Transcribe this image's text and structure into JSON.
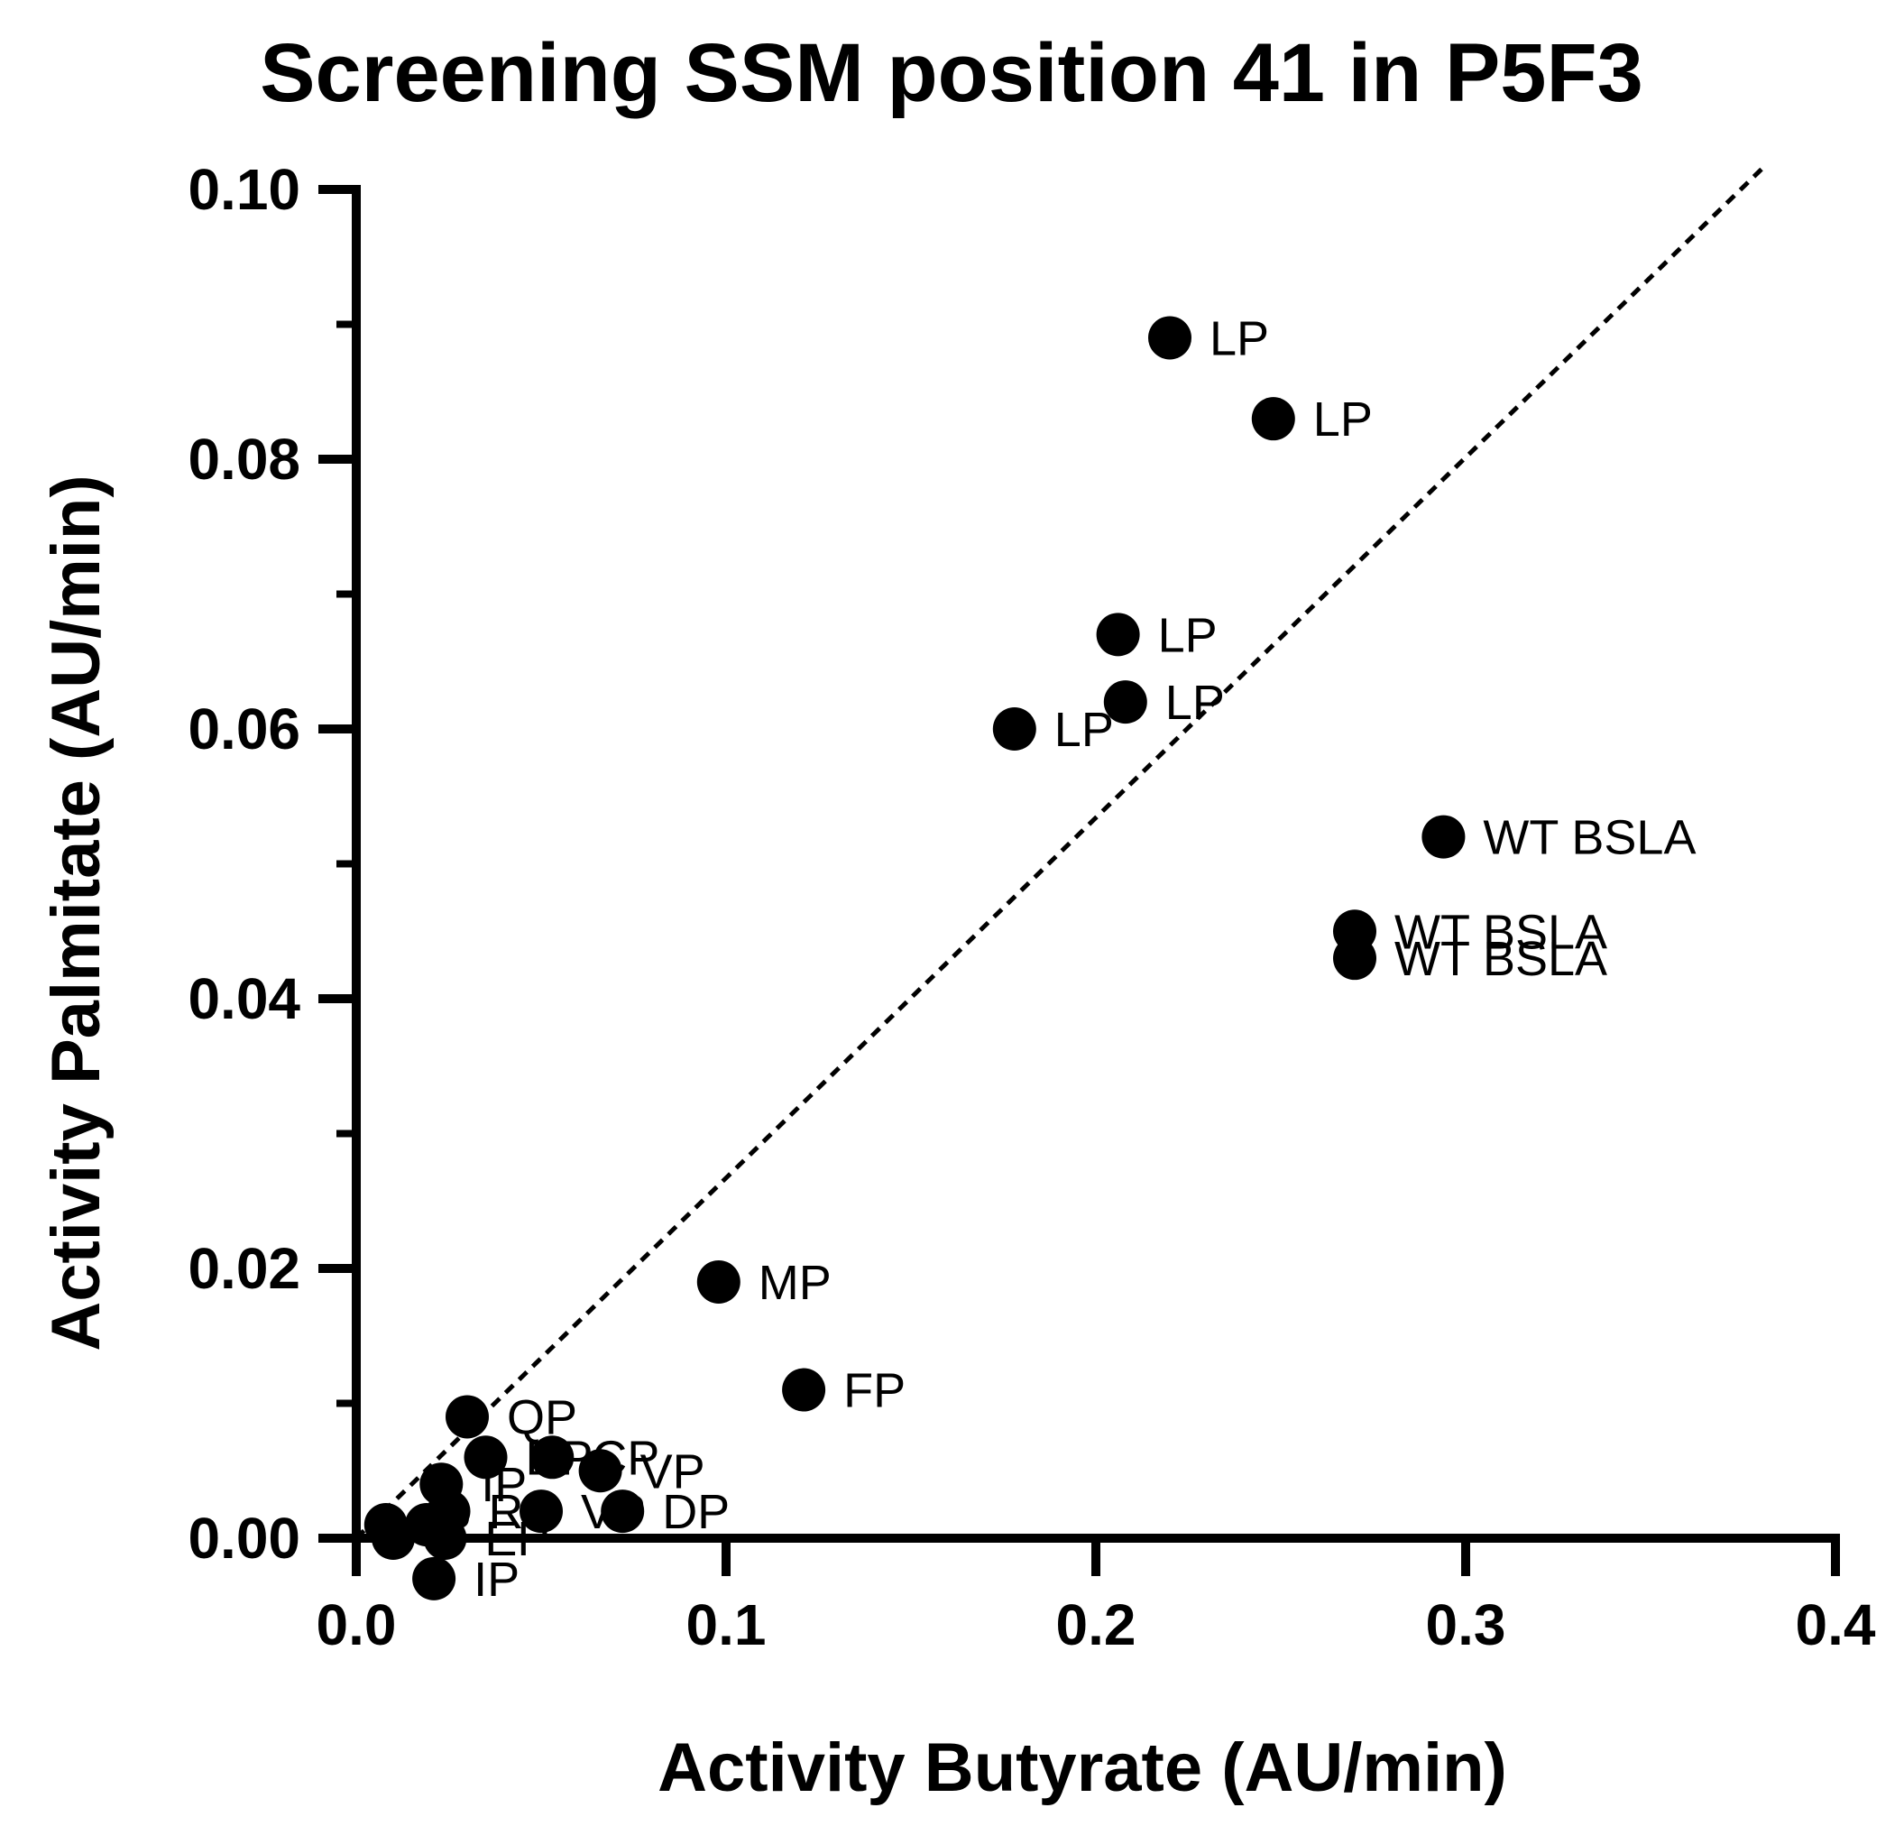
{
  "chart_data": {
    "type": "scatter",
    "title": "Screening SSM position 41 in P5F3",
    "xlabel": "Activity Butyrate (AU/min)",
    "ylabel": "Activity Palmitate (AU/min)",
    "xlim": [
      0.0,
      0.4
    ],
    "ylim": [
      0.0,
      0.1
    ],
    "x_ticks": [
      0.0,
      0.1,
      0.2,
      0.3,
      0.4
    ],
    "x_tick_labels": [
      "0.0",
      "0.1",
      "0.2",
      "0.3",
      "0.4"
    ],
    "y_ticks": [
      0.0,
      0.02,
      0.04,
      0.06,
      0.08,
      0.1
    ],
    "y_tick_labels": [
      "0.00",
      "0.02",
      "0.04",
      "0.06",
      "0.08",
      "0.10"
    ],
    "y_minor_ticks": [
      0.01,
      0.03,
      0.05,
      0.07,
      0.09
    ],
    "reference_line": {
      "style": "dashed",
      "from": [
        0.0,
        0.0
      ],
      "to": [
        0.38,
        0.1015
      ]
    },
    "points": [
      {
        "x": 0.22,
        "y": 0.089,
        "label": "LP"
      },
      {
        "x": 0.248,
        "y": 0.083,
        "label": "LP"
      },
      {
        "x": 0.206,
        "y": 0.067,
        "label": "LP"
      },
      {
        "x": 0.208,
        "y": 0.062,
        "label": "LP"
      },
      {
        "x": 0.178,
        "y": 0.06,
        "label": "LP"
      },
      {
        "x": 0.294,
        "y": 0.052,
        "label": "WT BSLA"
      },
      {
        "x": 0.27,
        "y": 0.045,
        "label": "WT BSLA"
      },
      {
        "x": 0.27,
        "y": 0.043,
        "label": "WT BSLA"
      },
      {
        "x": 0.098,
        "y": 0.019,
        "label": "MP"
      },
      {
        "x": 0.121,
        "y": 0.011,
        "label": "FP"
      },
      {
        "x": 0.053,
        "y": 0.006,
        "label": "CP"
      },
      {
        "x": 0.066,
        "y": 0.005,
        "label": "VP"
      },
      {
        "x": 0.023,
        "y": 0.004,
        "label": "IP"
      },
      {
        "x": 0.03,
        "y": 0.009,
        "label": "QP"
      },
      {
        "x": 0.035,
        "y": 0.006,
        "label": "DP"
      },
      {
        "x": 0.05,
        "y": 0.002,
        "label": "VP"
      },
      {
        "x": 0.072,
        "y": 0.002,
        "label": "DP"
      },
      {
        "x": 0.025,
        "y": 0.002,
        "label": "RP"
      },
      {
        "x": 0.008,
        "y": 0.001,
        "label": "IP"
      },
      {
        "x": 0.01,
        "y": 0.0,
        "label": ""
      },
      {
        "x": 0.019,
        "y": 0.001,
        "label": ""
      },
      {
        "x": 0.024,
        "y": 0.0,
        "label": "EP"
      },
      {
        "x": 0.021,
        "y": -0.003,
        "label": "IP"
      }
    ]
  }
}
